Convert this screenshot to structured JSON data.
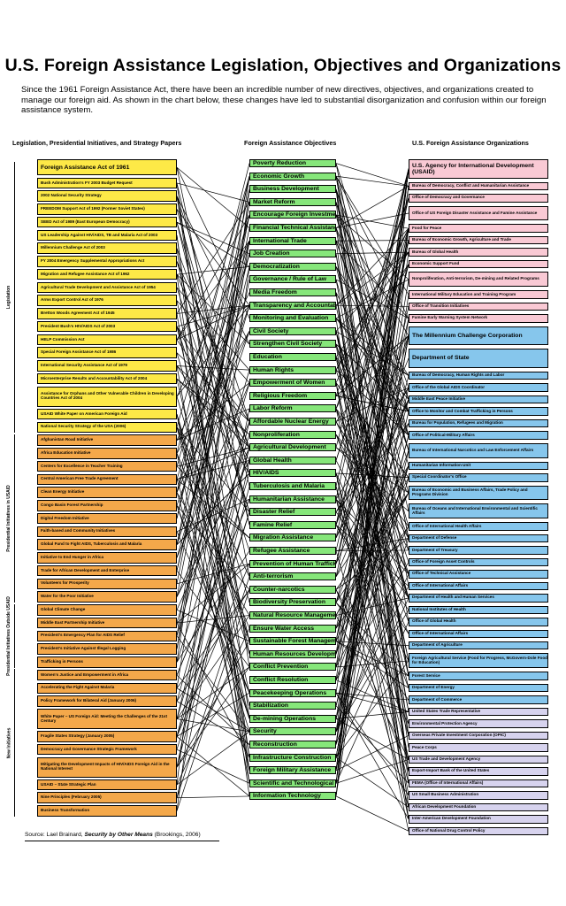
{
  "title": "U.S. Foreign Assistance Legislation, Objectives and Organizations",
  "intro": "Since the 1961 Foreign Assistance Act, there have been an incredible number of new directives, objectives, and organizations created to manage our foreign aid. As shown in the chart below, these changes have led to substantial disorganization and confusion within our foreign assistance system.",
  "columns": {
    "left": "Legislation, Presidential Initiatives, and Strategy Papers",
    "middle": "Foreign Assistance Objectives",
    "right": "U.S. Foreign Assistance Organizations"
  },
  "source": {
    "prefix": "Source: Lael Brainard, ",
    "book": "Security by Other Means",
    "suffix": " (Brookings, 2006)"
  },
  "colors": {
    "yellow": "#fde947",
    "orange": "#f4a84a",
    "green": "#86e67a",
    "pink": "#f9c9d4",
    "blue": "#86c6ec",
    "lavender": "#d7d3ee"
  },
  "groups": [
    {
      "label": "Legislation"
    },
    {
      "label": "Presidential Initiatives in USAID"
    },
    {
      "label": "Presidential Initiatives Outside USAID"
    },
    {
      "label": "New Initiatives"
    }
  ],
  "legislation": [
    {
      "label": "Foreign Assistance Act of 1961",
      "color": "yellow",
      "big": true
    },
    {
      "label": "Bush Administration's FY 2003 Budget Request",
      "color": "yellow"
    },
    {
      "label": "2002 National Security Strategy",
      "color": "yellow"
    },
    {
      "label": "FREEDOM Support Act of 1992 (Former Soviet States)",
      "color": "yellow"
    },
    {
      "label": "SEED Act of 1989 (East European Democracy)",
      "color": "yellow"
    },
    {
      "label": "US Leadership Against HIV/AIDS, TB and Malaria Act of 2003",
      "color": "yellow"
    },
    {
      "label": "Millennium Challenge Act of 2003",
      "color": "yellow"
    },
    {
      "label": "FY 2004 Emergency Supplemental Appropriations Act",
      "color": "yellow"
    },
    {
      "label": "Migration and Refugee Assistance Act of 1962",
      "color": "yellow"
    },
    {
      "label": "Agricultural Trade Development and Assistance Act of 1954",
      "color": "yellow"
    },
    {
      "label": "Arms Export Control Act of 1976",
      "color": "yellow"
    },
    {
      "label": "Bretton Woods Agreement Act of 1945",
      "color": "yellow"
    },
    {
      "label": "President Bush's HIV/AIDS Act of 2003",
      "color": "yellow"
    },
    {
      "label": "HELP Commission Act",
      "color": "yellow"
    },
    {
      "label": "Special Foreign Assistance Act of 1986",
      "color": "yellow"
    },
    {
      "label": "International Security Assistance Act of 1979",
      "color": "yellow"
    },
    {
      "label": "Microenterprise Results and Accountability Act of 2004",
      "color": "yellow"
    },
    {
      "label": "Assistance for Orphans and Other Vulnerable Children in Developing Countries Act of 2004",
      "color": "yellow",
      "tall": true
    },
    {
      "label": "USAID White Paper on American Foreign Aid",
      "color": "yellow"
    },
    {
      "label": "National Security Strategy of the USA (2006)",
      "color": "yellow"
    },
    {
      "label": "Afghanistan Road Initiative",
      "color": "orange"
    },
    {
      "label": "Africa Education Initiative",
      "color": "orange"
    },
    {
      "label": "Centers for Excellence in Teacher Training",
      "color": "orange"
    },
    {
      "label": "Central American Free Trade Agreement",
      "color": "orange"
    },
    {
      "label": "Clean Energy Initiative",
      "color": "orange"
    },
    {
      "label": "Congo Basin Forest Partnership",
      "color": "orange"
    },
    {
      "label": "Digital Freedom Initiative",
      "color": "orange"
    },
    {
      "label": "Faith-based and Community Initiatives",
      "color": "orange"
    },
    {
      "label": "Global Fund to Fight AIDS, Tuberculosis and Malaria",
      "color": "orange"
    },
    {
      "label": "Initiative to End Hunger in Africa",
      "color": "orange"
    },
    {
      "label": "Trade for African Development and Enterprise",
      "color": "orange"
    },
    {
      "label": "Volunteers for Prosperity",
      "color": "orange"
    },
    {
      "label": "Water for the Poor Initiative",
      "color": "orange"
    },
    {
      "label": "Global Climate Change",
      "color": "orange"
    },
    {
      "label": "Middle East Partnership Initiative",
      "color": "orange"
    },
    {
      "label": "President's Emergency Plan for AIDS Relief",
      "color": "orange"
    },
    {
      "label": "President's Initiative Against Illegal Logging",
      "color": "orange"
    },
    {
      "label": "Trafficking in Persons",
      "color": "orange"
    },
    {
      "label": "Women's Justice and Empowerment in Africa",
      "color": "orange"
    },
    {
      "label": "Accelerating the Fight Against Malaria",
      "color": "orange"
    },
    {
      "label": "Policy Framework for Bilateral Aid (January 2006)",
      "color": "orange"
    },
    {
      "label": "White Paper – US Foreign Aid: Meeting the Challenges of the 21st Century",
      "color": "orange",
      "tall": true
    },
    {
      "label": "Fragile States Strategy (January 2005)",
      "color": "orange"
    },
    {
      "label": "Democracy and Governance Strategic Framework",
      "color": "orange"
    },
    {
      "label": "Mitigating the Development Impacts of HIV/AIDS Foreign Aid in the National Interest",
      "color": "orange",
      "tall": true
    },
    {
      "label": "USAID – State Strategic Plan",
      "color": "orange"
    },
    {
      "label": "Nine Principles (February 2005)",
      "color": "orange"
    },
    {
      "label": "Business Transformation",
      "color": "orange"
    }
  ],
  "objectives": [
    "Poverty Reduction",
    "Economic Growth",
    "Business Development",
    "Market Reform",
    "Encourage Foreign Investment",
    "Financial Technical Assistance",
    "International Trade",
    "Job Creation",
    "Democratization",
    "Governance / Rule of Law",
    "Media Freedom",
    "Transparency and Accountability",
    "Monitoring and Evaluation",
    "Civil Society",
    "Strengthen Civil Society",
    "Education",
    "Human Rights",
    "Empowerment of Women",
    "Religious Freedom",
    "Labor Reform",
    "Affordable Nuclear Energy",
    "Nonproliferation",
    "Agricultural Development",
    "Global Health",
    "HIV/AIDS",
    "Tuberculosis and Malaria",
    "Humanitarian Assistance",
    "Disaster Relief",
    "Famine Relief",
    "Migration Assistance",
    "Refugee Assistance",
    "Prevention of Human Trafficking",
    "Anti-terrorism",
    "Counter-narcotics",
    "Biodiversity Preservation",
    "Natural Resource Management",
    "Ensure Water Access",
    "Sustainable Forest Management",
    "Human Resources Development",
    "Conflict Prevention",
    "Conflict Resolution",
    "Peacekeeping Operations",
    "Stabilization",
    "De-mining Operations",
    "Security",
    "Reconstruction",
    "Infrastructure Construction",
    "Foreign Military Assistance",
    "Scientific and Technological Innovation",
    "Information Technology"
  ],
  "organizations": [
    {
      "label": "U.S. Agency for International Development (USAID)",
      "color": "pink",
      "big": true,
      "tall": true
    },
    {
      "label": "Bureau of Democracy, Conflict and Humanitarian Assistance",
      "color": "pink"
    },
    {
      "label": "Office of Democracy and Governance",
      "color": "pink"
    },
    {
      "label": "Office of US Foreign Disaster Assistance and Famine Assistance",
      "color": "pink",
      "tall": true
    },
    {
      "label": "Food for Peace",
      "color": "pink"
    },
    {
      "label": "Bureau of Economic Growth, Agriculture and Trade",
      "color": "pink"
    },
    {
      "label": "Bureau of Global Health",
      "color": "pink"
    },
    {
      "label": "Economic Support Fund",
      "color": "pink"
    },
    {
      "label": "Nonproliferation, Anti-terrorism, De-mining and Related Programs",
      "color": "pink",
      "tall": true
    },
    {
      "label": "International Military Education and Training Program",
      "color": "pink"
    },
    {
      "label": "Office of Transition Initiatives",
      "color": "pink"
    },
    {
      "label": "Famine Early Warning System Network",
      "color": "pink"
    },
    {
      "label": "The Millennium Challenge Corporation",
      "color": "blue",
      "big": true,
      "tall": true
    },
    {
      "label": "Department of State",
      "color": "blue",
      "big": true,
      "tall": true
    },
    {
      "label": "Bureau of Democracy, Human Rights and Labor",
      "color": "blue"
    },
    {
      "label": "Office of the Global AIDS Coordinator",
      "color": "blue"
    },
    {
      "label": "Middle East Peace Initiative",
      "color": "blue"
    },
    {
      "label": "Office to Monitor and Combat Trafficking in Persons",
      "color": "blue"
    },
    {
      "label": "Bureau for Population, Refugees and Migration",
      "color": "blue"
    },
    {
      "label": "Office of Political-Military Affairs",
      "color": "blue"
    },
    {
      "label": "Bureau of International Narcotics and Law Enforcement Affairs",
      "color": "blue",
      "tall": true
    },
    {
      "label": "Humanitarian Information Unit",
      "color": "blue"
    },
    {
      "label": "Special Coordinator's Office",
      "color": "blue"
    },
    {
      "label": "Bureau of Economic and Business Affairs, Trade Policy and Programs Division",
      "color": "blue",
      "tall": true
    },
    {
      "label": "Bureau of Oceans and International Environmental and Scientific Affairs",
      "color": "blue",
      "tall": true
    },
    {
      "label": "Office of International Health Affairs",
      "color": "blue"
    },
    {
      "label": "Department of Defense",
      "color": "blue"
    },
    {
      "label": "Department of Treasury",
      "color": "blue"
    },
    {
      "label": "Office of Foreign Asset Controls",
      "color": "blue"
    },
    {
      "label": "Office of Technical Assistance",
      "color": "blue"
    },
    {
      "label": "Office of International Affairs",
      "color": "blue"
    },
    {
      "label": "Department of Health and Human Services",
      "color": "blue"
    },
    {
      "label": "National Institutes of Health",
      "color": "blue"
    },
    {
      "label": "Office of Global Health",
      "color": "blue"
    },
    {
      "label": "Office of International Affairs",
      "color": "blue"
    },
    {
      "label": "Department of Agriculture",
      "color": "blue"
    },
    {
      "label": "Foreign Agricultural Service (Food for Progress, McGovern-Dole Food for Education)",
      "color": "blue",
      "tall": true
    },
    {
      "label": "Forest Service",
      "color": "blue"
    },
    {
      "label": "Department of Energy",
      "color": "blue"
    },
    {
      "label": "Department of Commerce",
      "color": "blue"
    },
    {
      "label": "United States Trade Representative",
      "color": "lavender"
    },
    {
      "label": "Environmental Protection Agency",
      "color": "lavender"
    },
    {
      "label": "Overseas Private Investment Corporation (OPIC)",
      "color": "lavender"
    },
    {
      "label": "Peace Corps",
      "color": "lavender"
    },
    {
      "label": "US Trade and Development Agency",
      "color": "lavender"
    },
    {
      "label": "Export-Import Bank of the United States",
      "color": "lavender"
    },
    {
      "label": "FEMA (Office of International Affairs)",
      "color": "lavender"
    },
    {
      "label": "US Small Business Administration",
      "color": "lavender"
    },
    {
      "label": "African Development Foundation",
      "color": "lavender"
    },
    {
      "label": "Inter-American Development Foundation",
      "color": "lavender"
    },
    {
      "label": "Office of National Drug Control Policy",
      "color": "lavender"
    }
  ]
}
